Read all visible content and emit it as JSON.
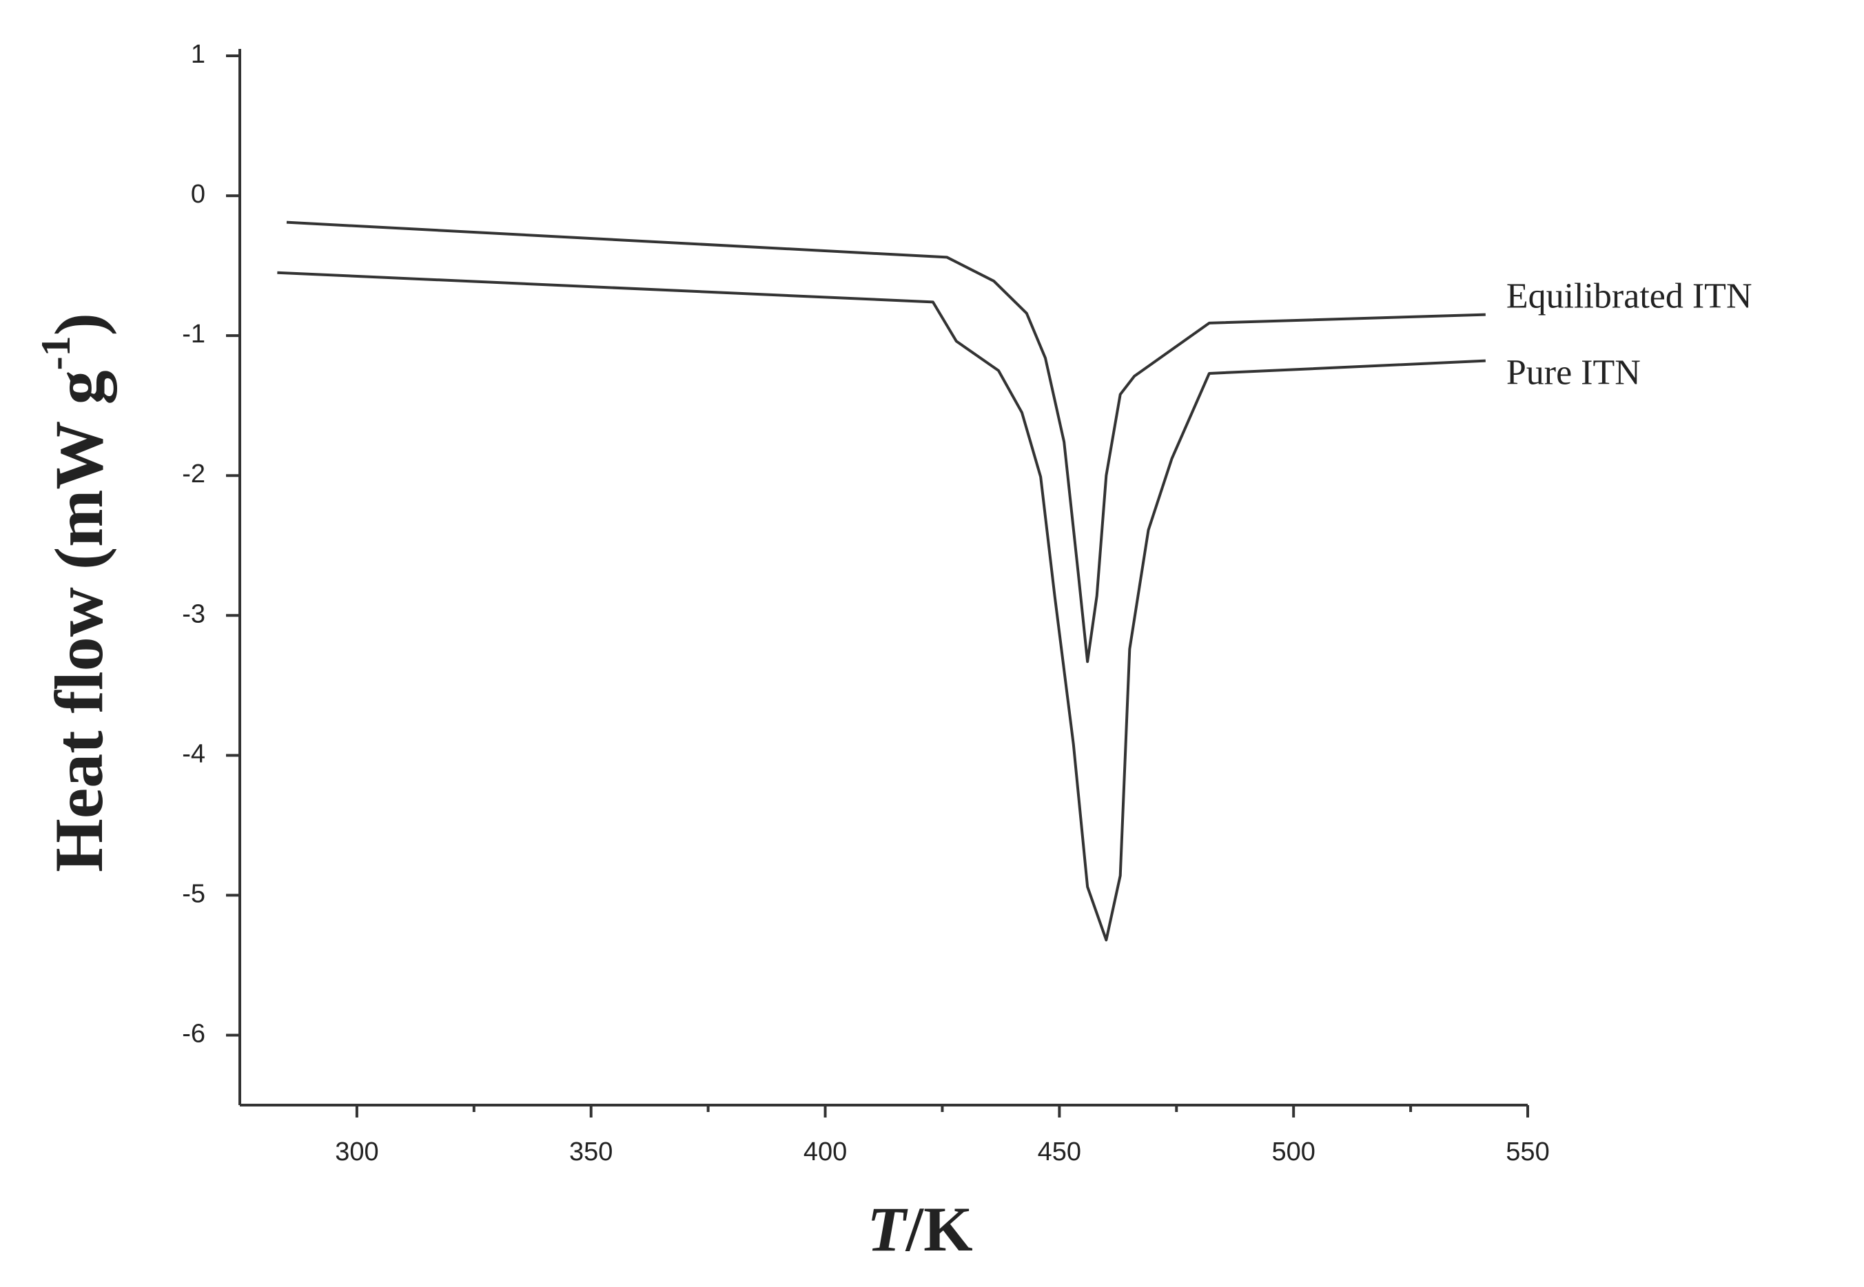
{
  "chart_data": {
    "type": "line",
    "xlabel": [
      "T",
      "/K"
    ],
    "ylabel": [
      "Heat flow (mW g",
      "-1",
      ")"
    ],
    "xlim": [
      275,
      550
    ],
    "xticks": [
      300,
      350,
      400,
      450,
      500,
      550
    ],
    "ylim": [
      -6.5,
      1
    ],
    "yticks": [
      1,
      0,
      -1,
      -2,
      -3,
      -4,
      -5,
      -6
    ],
    "series": [
      {
        "name": "Equilibrated ITN",
        "color": "#333333",
        "x": [
          285,
          426,
          436,
          443,
          447,
          451,
          454,
          456,
          458,
          460,
          463,
          466,
          482,
          541
        ],
        "values": [
          -0.19,
          -0.44,
          -0.61,
          -0.84,
          -1.16,
          -1.76,
          -2.69,
          -3.33,
          -2.86,
          -2.0,
          -1.42,
          -1.29,
          -0.91,
          -0.85
        ]
      },
      {
        "name": "Pure ITN",
        "color": "#333333",
        "x": [
          283,
          423,
          428,
          437,
          442,
          446,
          449,
          453,
          456,
          460,
          463,
          465,
          469,
          474,
          482,
          541
        ],
        "values": [
          -0.55,
          -0.76,
          -1.04,
          -1.25,
          -1.55,
          -2.01,
          -2.86,
          -3.92,
          -4.94,
          -5.32,
          -4.86,
          -3.24,
          -2.39,
          -1.88,
          -1.27,
          -1.18
        ]
      }
    ]
  }
}
